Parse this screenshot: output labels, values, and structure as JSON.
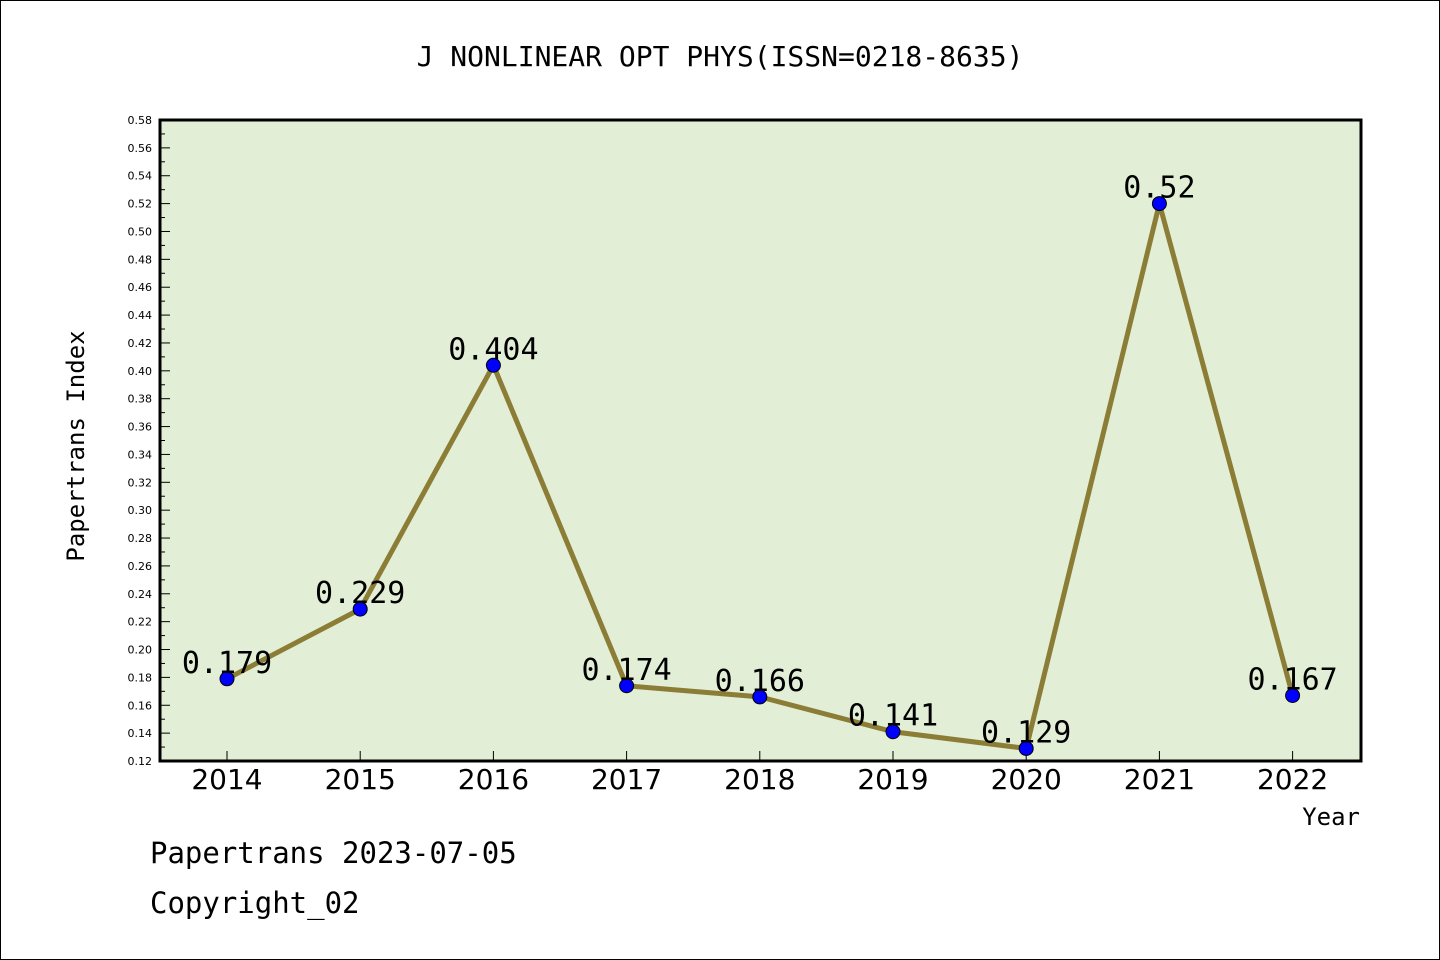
{
  "chart_data": {
    "type": "line",
    "title": "J NONLINEAR OPT PHYS(ISSN=0218-8635)",
    "xlabel": "Year",
    "ylabel": "Papertrans Index",
    "categories": [
      "2014",
      "2015",
      "2016",
      "2017",
      "2018",
      "2019",
      "2020",
      "2021",
      "2022"
    ],
    "series": [
      {
        "values": [
          0.179,
          0.229,
          0.404,
          0.174,
          0.166,
          0.141,
          0.129,
          0.52,
          0.167
        ],
        "labels": [
          "0.179",
          "0.229",
          "0.404",
          "0.174",
          "0.166",
          "0.141",
          "0.129",
          "0.52",
          "0.167"
        ]
      }
    ],
    "ylim": [
      0.12,
      0.58
    ],
    "yticks": [
      "0.12",
      "0.14",
      "0.16",
      "0.18",
      "0.20",
      "0.22",
      "0.24",
      "0.26",
      "0.28",
      "0.30",
      "0.32",
      "0.34",
      "0.36",
      "0.38",
      "0.40",
      "0.42",
      "0.44",
      "0.46",
      "0.48",
      "0.50",
      "0.52",
      "0.54",
      "0.56",
      "0.58"
    ],
    "grid": false,
    "colors": {
      "plot_background": "#e2efd6",
      "line": "#8b7d35",
      "marker": "#0000ff"
    }
  },
  "footer": {
    "line1": "Papertrans 2023-07-05",
    "line2": "Copyright_02"
  }
}
